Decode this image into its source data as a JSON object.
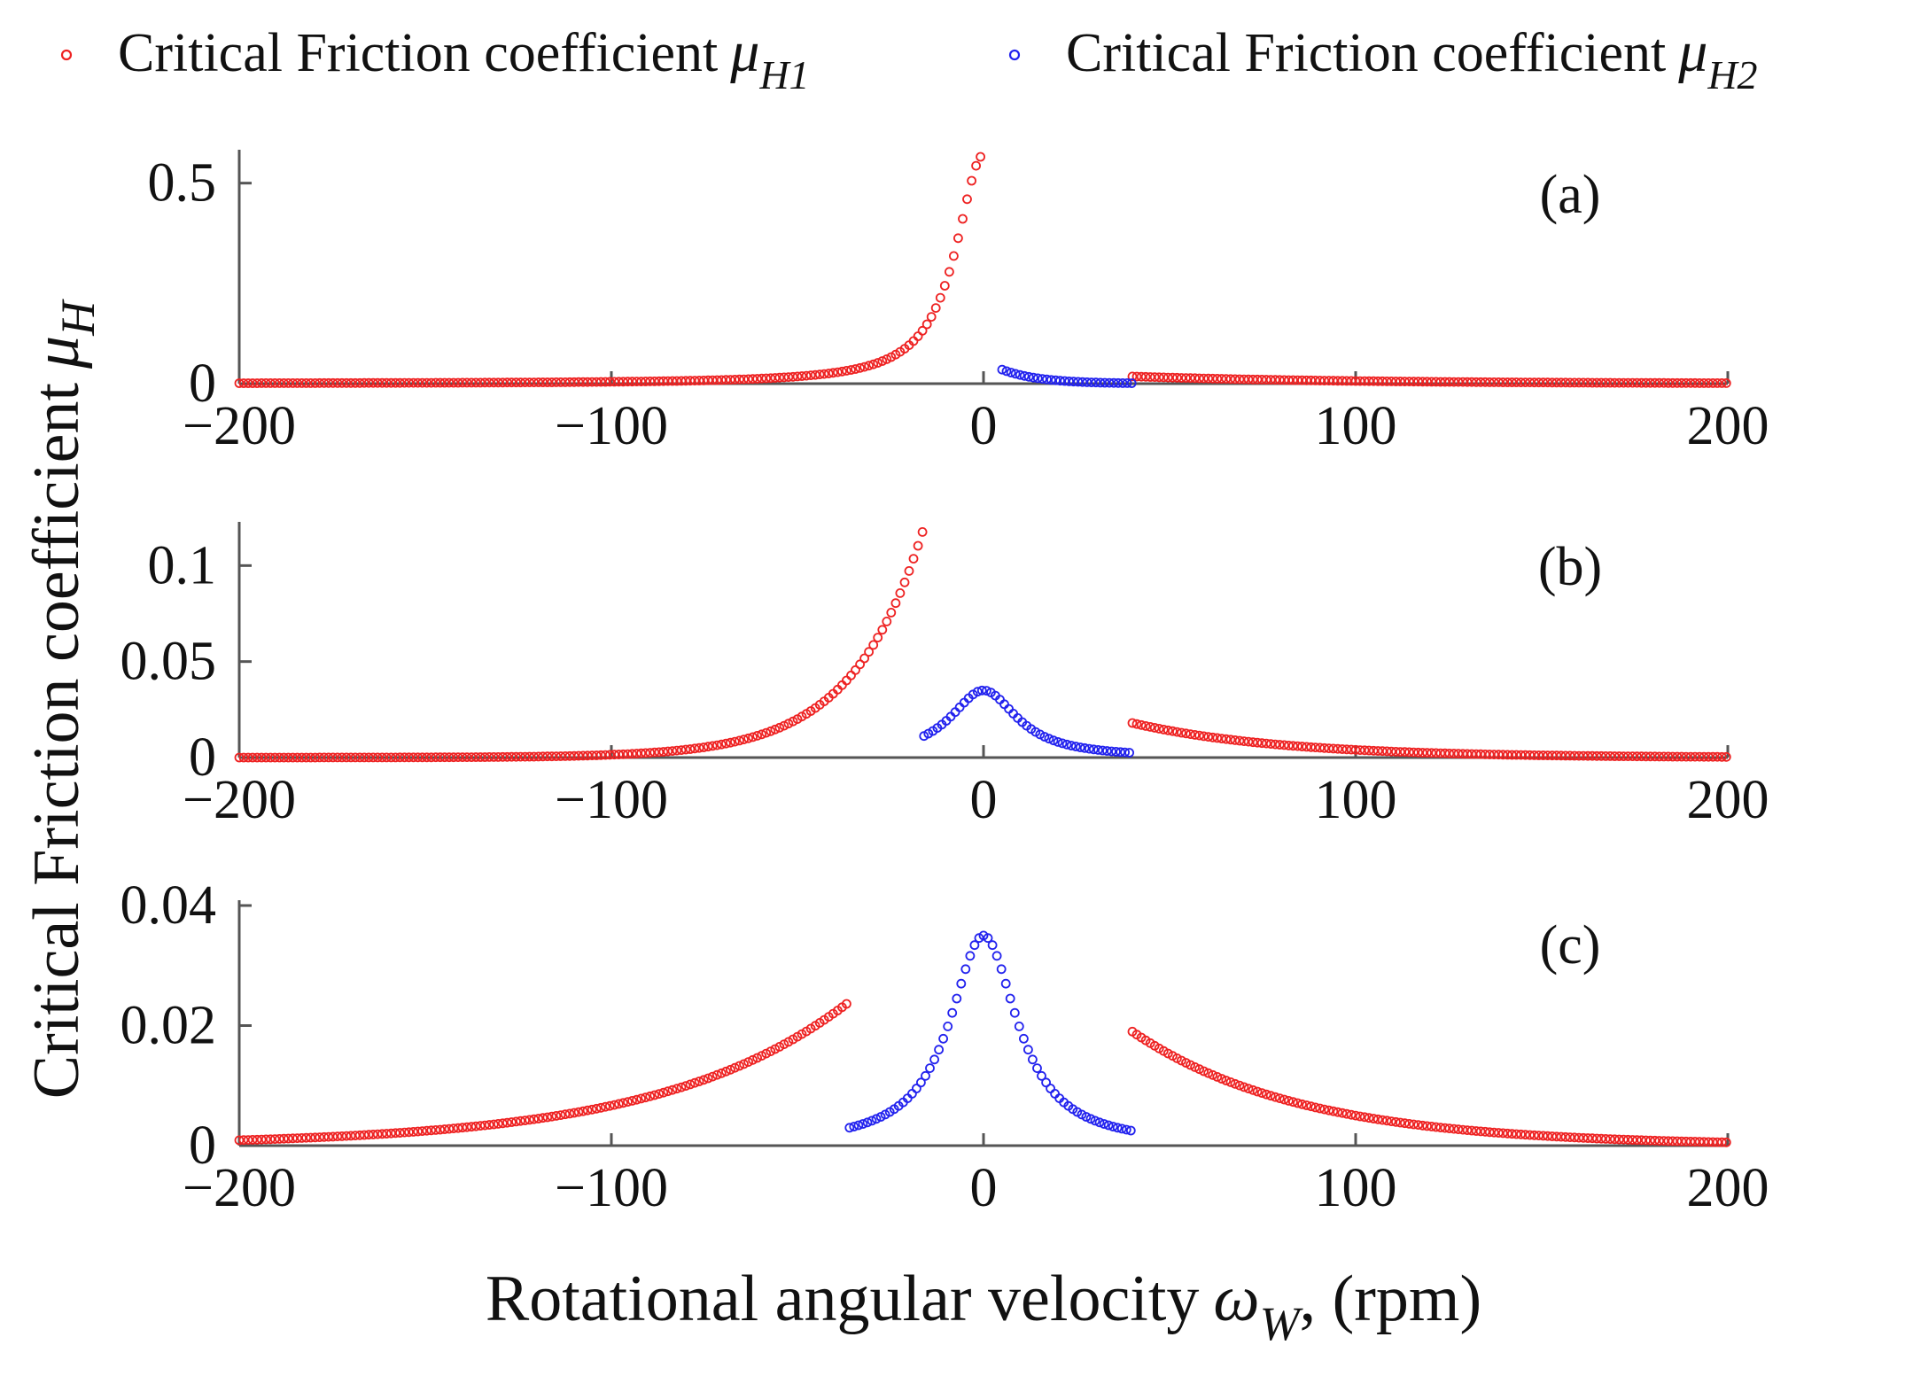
{
  "chart_data": {
    "legend": [
      {
        "name": "Critical Friction coefficient",
        "symbol": "μ",
        "sub": "H1",
        "color": "#ee2222"
      },
      {
        "name": "Critical Friction coefficient",
        "symbol": "μ",
        "sub": "H2",
        "color": "#2222ee"
      }
    ],
    "ylabel": {
      "text": "Critical Friction coefficient",
      "symbol": "μ",
      "sub": "H"
    },
    "xlabel": {
      "pre": "Rotational angular velocity",
      "symbol": "ω",
      "sub": "W",
      "post": ", (rpm)"
    },
    "panels": [
      {
        "label": "(a)",
        "type": "scatter",
        "xlim": [
          -200,
          200
        ],
        "ylim": [
          0,
          0.57
        ],
        "xticks": [
          -200,
          -100,
          0,
          100,
          200
        ],
        "xtick_labels": [
          "−200",
          "−100",
          "0",
          "100",
          "200"
        ],
        "yticks": [
          0,
          0.5
        ],
        "ytick_labels": [
          "0",
          "0.5"
        ],
        "series": [
          {
            "name": "μH1",
            "color": "#ee2222",
            "segments": [
              {
                "x": [
                  -200,
                  0
                ],
                "peak": 0.57,
                "w": 9
              },
              {
                "x": [
                  40,
                  200
                ],
                "startValue": 0.018,
                "decay": 60
              }
            ]
          },
          {
            "name": "μH2",
            "color": "#2222ee",
            "segments": [
              {
                "x": [
                  5,
                  40
                ],
                "startValue": 0.035,
                "decay": 10
              }
            ]
          }
        ]
      },
      {
        "label": "(b)",
        "type": "scatter",
        "xlim": [
          -200,
          200
        ],
        "ylim": [
          0,
          0.12
        ],
        "xticks": [
          -200,
          -100,
          0,
          100,
          200
        ],
        "xtick_labels": [
          "−200",
          "−100",
          "0",
          "100",
          "200"
        ],
        "yticks": [
          0,
          0.05,
          0.1
        ],
        "ytick_labels": [
          "0",
          "0.05",
          "0.1"
        ],
        "series": [
          {
            "name": "μH1",
            "color": "#ee2222",
            "segments": [
              {
                "x": [
                  -200,
                  -16
                ],
                "growth": 0.12,
                "endX": -16,
                "decay": 19
              },
              {
                "x": [
                  40,
                  200
                ],
                "startValue": 0.018,
                "decay": 40
              }
            ]
          },
          {
            "name": "μH2",
            "color": "#2222ee",
            "segments": [
              {
                "x": [
                  -16,
                  40
                ],
                "peak": 0.035,
                "w": 11
              }
            ]
          }
        ]
      },
      {
        "label": "(c)",
        "type": "scatter",
        "xlim": [
          -200,
          200
        ],
        "ylim": [
          0,
          0.04
        ],
        "xticks": [
          -200,
          -100,
          0,
          100,
          200
        ],
        "xtick_labels": [
          "−200",
          "−100",
          "0",
          "100",
          "200"
        ],
        "yticks": [
          0,
          0.02,
          0.04
        ],
        "ytick_labels": [
          "0",
          "0.02",
          "0.04"
        ],
        "series": [
          {
            "name": "μH1",
            "color": "#ee2222",
            "segments": [
              {
                "x": [
                  -200,
                  -36
                ],
                "growth": 0.024,
                "endX": -36,
                "decay": 50
              },
              {
                "x": [
                  40,
                  200
                ],
                "startValue": 0.019,
                "decay": 45
              }
            ]
          },
          {
            "name": "μH2",
            "color": "#2222ee",
            "segments": [
              {
                "x": [
                  -36,
                  40
                ],
                "peak": 0.035,
                "w": 11
              }
            ]
          }
        ]
      }
    ]
  }
}
